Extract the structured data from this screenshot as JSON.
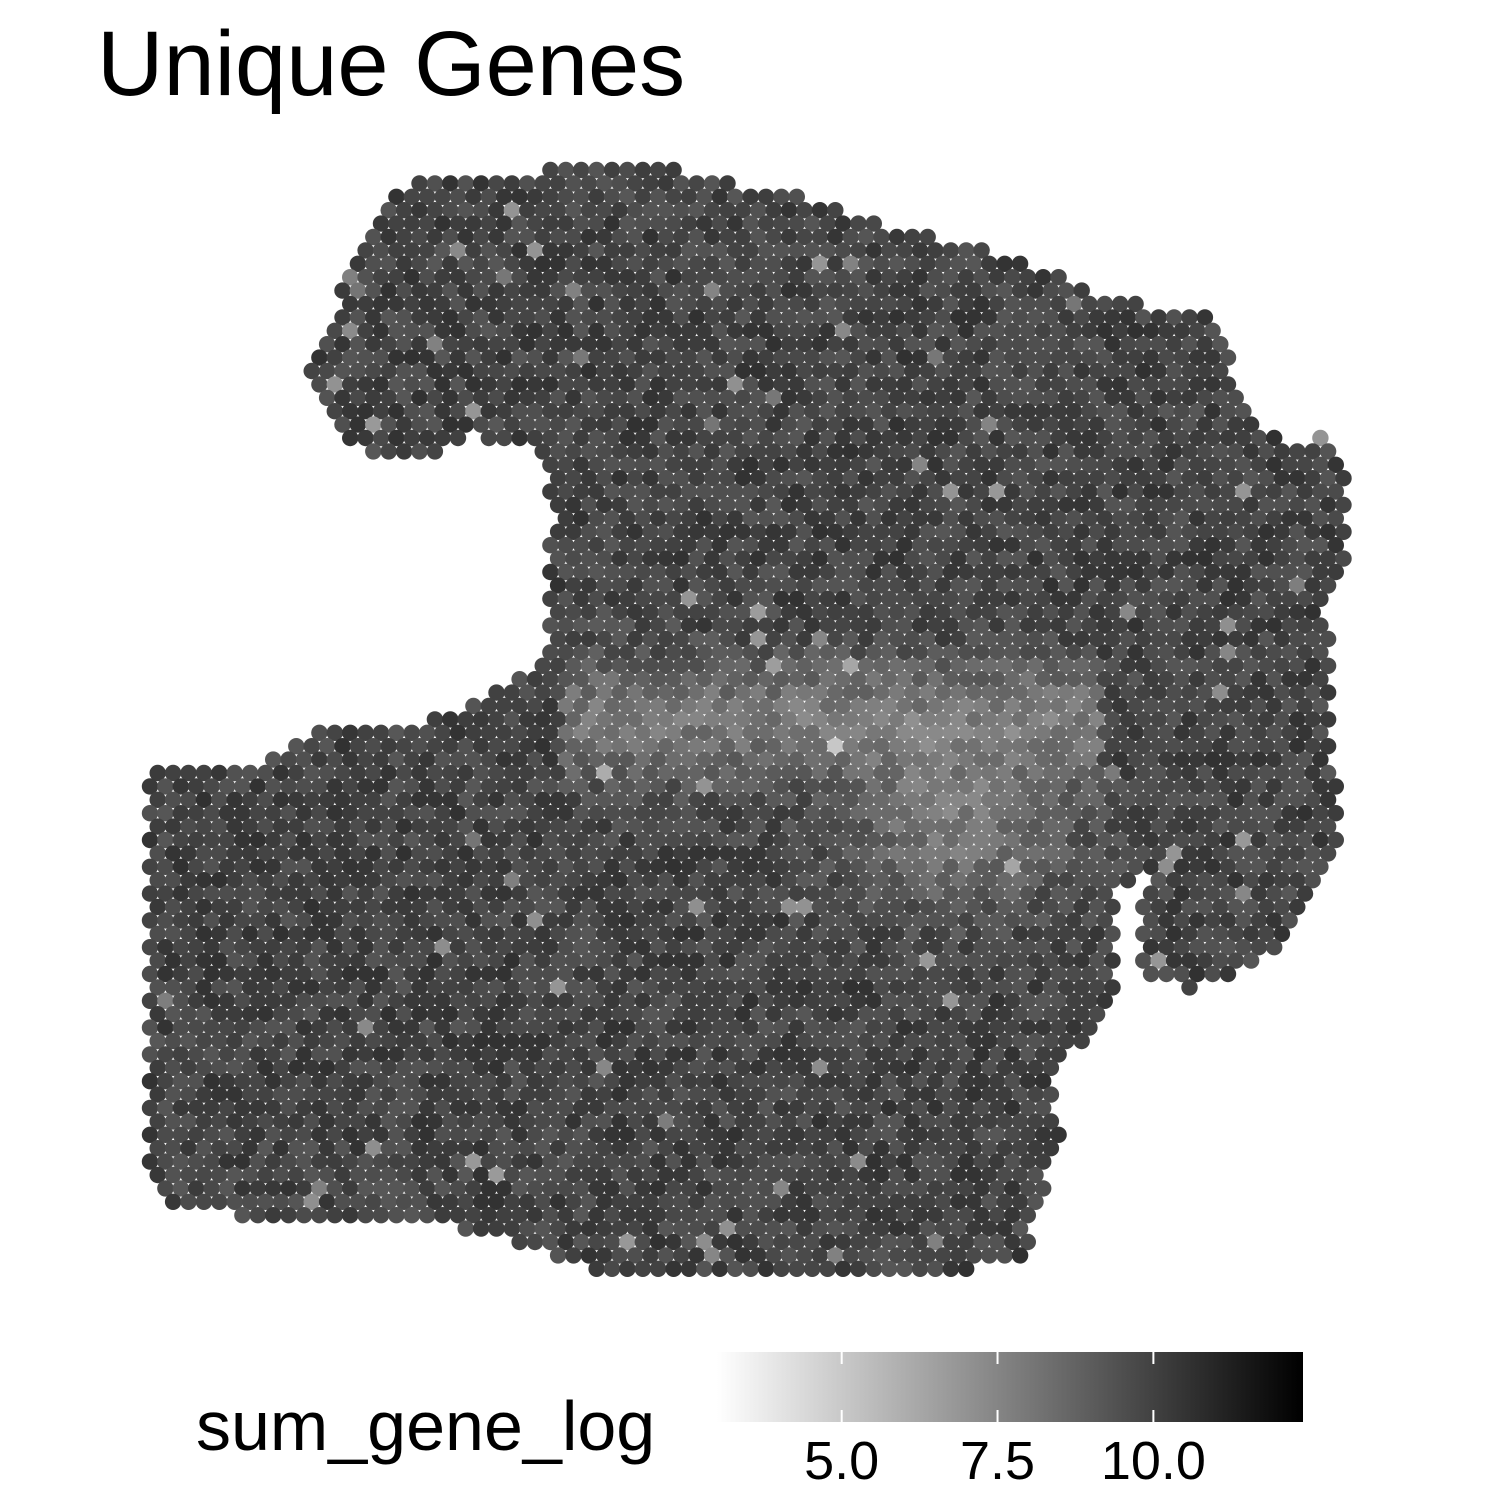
{
  "chart_data": {
    "type": "scatter",
    "title": "Unique Genes",
    "color_variable": "sum_gene_log",
    "color_scale": {
      "low_color": "#ffffff",
      "high_color": "#000000",
      "range": [
        3.0,
        12.4
      ],
      "ticks": [
        5.0,
        7.5,
        10.0
      ],
      "tick_labels": [
        "5.0",
        "7.5",
        "10.0"
      ]
    },
    "legend_position": "bottom",
    "point_color_description": "spots mostly 8.5-11.5, lighter band ~7.8 across middle, lighter edge spots",
    "grid": false,
    "axes_visible": false
  }
}
